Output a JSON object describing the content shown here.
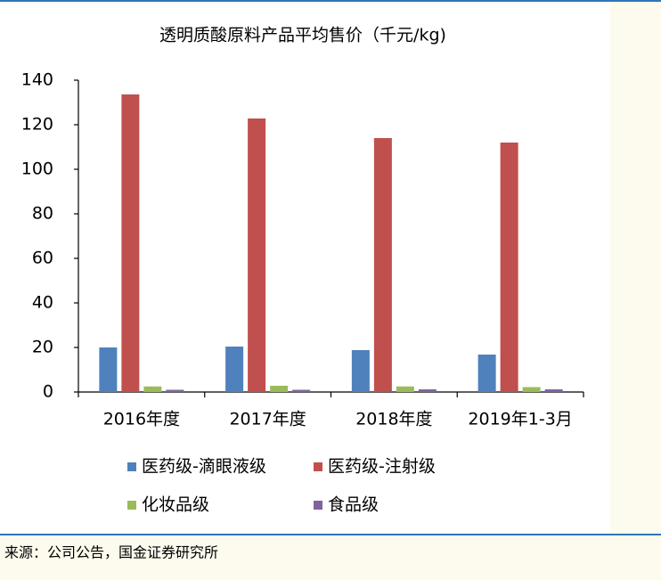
{
  "chart_data": {
    "type": "bar",
    "title": "透明质酸原料产品平均售价（千元/kg)",
    "categories": [
      "2016年度",
      "2017年度",
      "2018年度",
      "2019年1-3月"
    ],
    "series": [
      {
        "name": "医药级-滴眼液级",
        "color": "#4f81bd",
        "values": [
          20,
          20.4,
          18.8,
          16.8
        ]
      },
      {
        "name": "医药级-注射级",
        "color": "#c0504d",
        "values": [
          133.6,
          122.8,
          114,
          112
        ]
      },
      {
        "name": "化妆品级",
        "color": "#9bbb59",
        "values": [
          2.5,
          2.8,
          2.5,
          2.2
        ]
      },
      {
        "name": "食品级",
        "color": "#8064a2",
        "values": [
          1,
          1,
          1.2,
          1.2
        ]
      }
    ],
    "ylim": [
      0,
      140
    ],
    "yticks": [
      0,
      20,
      40,
      60,
      80,
      100,
      120,
      140
    ],
    "grid": false
  },
  "source": "来源：公司公告，国金证券研究所"
}
